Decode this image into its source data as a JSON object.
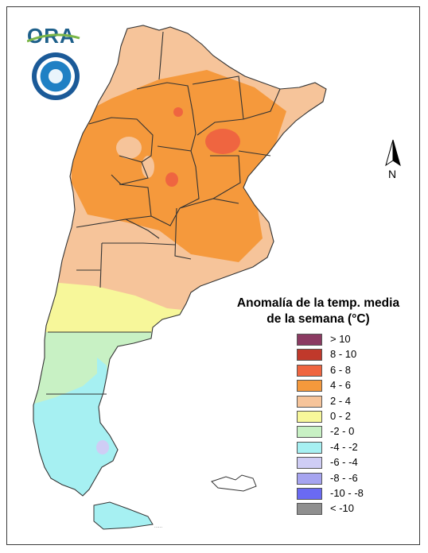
{
  "logo": {
    "text": "ORA",
    "seal_icon": "smn-seal-icon"
  },
  "north_arrow": {
    "letter": "N",
    "icon": "north-arrow-icon"
  },
  "legend": {
    "title_line1": "Anomalía de la temp. media",
    "title_line2": "de la semana (°C)",
    "items": [
      {
        "label": "> 10",
        "color": "#8b3a62"
      },
      {
        "label": "8 - 10",
        "color": "#c0392b"
      },
      {
        "label": "6 - 8",
        "color": "#ef6540"
      },
      {
        "label": "4 - 6",
        "color": "#f5993c"
      },
      {
        "label": "2 - 4",
        "color": "#f6c49a"
      },
      {
        "label": "0 - 2",
        "color": "#f7f79a"
      },
      {
        "label": "-2 - 0",
        "color": "#c8f1c4"
      },
      {
        "label": "-4 - -2",
        "color": "#a6f0f2"
      },
      {
        "label": "-6 - -4",
        "color": "#cfcdf5"
      },
      {
        "label": "-8 - -6",
        "color": "#a6a4f0"
      },
      {
        "label": "-10 - -8",
        "color": "#6a6af2"
      },
      {
        "label": "< -10",
        "color": "#8f8f8f"
      }
    ]
  }
}
